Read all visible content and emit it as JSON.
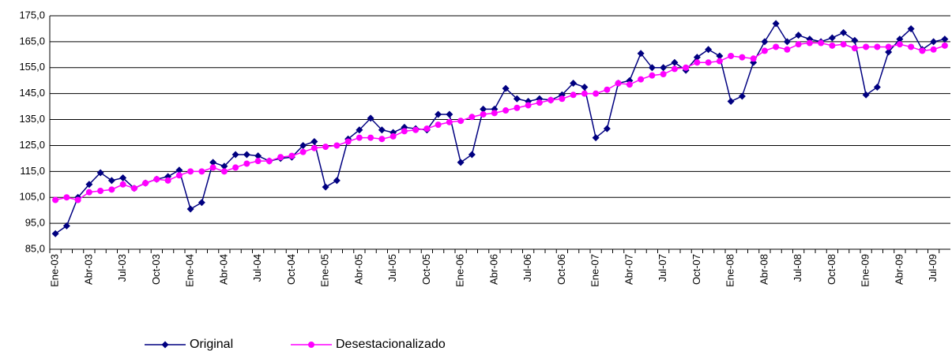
{
  "chart_data": {
    "type": "line",
    "categories": [
      "Ene-03",
      null,
      null,
      "Abr-03",
      null,
      null,
      "Jul-03",
      null,
      null,
      "Oct-03",
      null,
      null,
      "Ene-04",
      null,
      null,
      "Abr-04",
      null,
      null,
      "Jul-04",
      null,
      null,
      "Oct-04",
      null,
      null,
      "Ene-05",
      null,
      null,
      "Abr-05",
      null,
      null,
      "Jul-05",
      null,
      null,
      "Oct-05",
      null,
      null,
      "Ene-06",
      null,
      null,
      "Abr-06",
      null,
      null,
      "Jul-06",
      null,
      null,
      "Oct-06",
      null,
      null,
      "Ene-07",
      null,
      null,
      "Abr-07",
      null,
      null,
      "Jul-07",
      null,
      null,
      "Oct-07",
      null,
      null,
      "Ene-08",
      null,
      null,
      "Abr-08",
      null,
      null,
      "Jul-08",
      null,
      null,
      "Oct-08",
      null,
      null,
      "Ene-09",
      null,
      null,
      "Abr-09",
      null,
      null,
      "Jul-09",
      null
    ],
    "series": [
      {
        "name": "Original",
        "color": "#000080",
        "marker": "diamond",
        "values": [
          91,
          94,
          105,
          110,
          114.5,
          111.5,
          112.5,
          108.5,
          110.5,
          112,
          113,
          115.5,
          100.5,
          103,
          118.5,
          117,
          121.5,
          121.5,
          121,
          119,
          120,
          120.5,
          125,
          126.5,
          109,
          111.5,
          127.5,
          131,
          135.5,
          131,
          130,
          132,
          131.5,
          131,
          137,
          137,
          118.5,
          121.5,
          139,
          139,
          147,
          143,
          142,
          143,
          142.5,
          144.5,
          149,
          147.5,
          128,
          131.5,
          149,
          150,
          160.5,
          155,
          155,
          157,
          154,
          159,
          162,
          159.5,
          142,
          144,
          157,
          165,
          172,
          165,
          167.5,
          166,
          165,
          166.5,
          168.5,
          165.5,
          144.5,
          147.5,
          161,
          166,
          170,
          162,
          165,
          166
        ]
      },
      {
        "name": "Desestacionalizado",
        "color": "#ff00ff",
        "marker": "circle",
        "values": [
          104,
          105,
          104,
          107,
          107.5,
          108,
          110,
          108.5,
          110.5,
          112,
          111.5,
          113.5,
          115,
          115,
          116.5,
          115,
          116.5,
          118,
          119,
          119,
          120.5,
          121,
          122.5,
          124,
          124.5,
          125,
          126.5,
          128,
          128,
          127.5,
          128.5,
          130.5,
          131,
          131.5,
          133,
          134,
          134.5,
          136,
          137,
          137.5,
          138.5,
          139.5,
          140.5,
          141.5,
          142.5,
          143,
          144.5,
          145,
          145,
          146.5,
          149,
          148.5,
          150.5,
          152,
          152.5,
          154.5,
          155,
          157,
          157,
          157.5,
          159.5,
          159,
          158.5,
          161.5,
          163,
          162,
          164,
          164.5,
          164.5,
          163.5,
          164,
          162.5,
          163,
          163,
          163,
          164,
          163,
          161.5,
          162,
          163.5
        ]
      }
    ],
    "ylim": [
      85,
      175
    ],
    "yticks": [
      {
        "value": 85,
        "label": "85,0"
      },
      {
        "value": 95,
        "label": "95,0"
      },
      {
        "value": 105,
        "label": "105,0"
      },
      {
        "value": 115,
        "label": "115,0"
      },
      {
        "value": 125,
        "label": "125,0"
      },
      {
        "value": 135,
        "label": "135,0"
      },
      {
        "value": 145,
        "label": "145,0"
      },
      {
        "value": 155,
        "label": "155,0"
      },
      {
        "value": 165,
        "label": "165,0"
      },
      {
        "value": 175,
        "label": "175,0"
      }
    ],
    "grid": true,
    "legend": "bottom"
  }
}
